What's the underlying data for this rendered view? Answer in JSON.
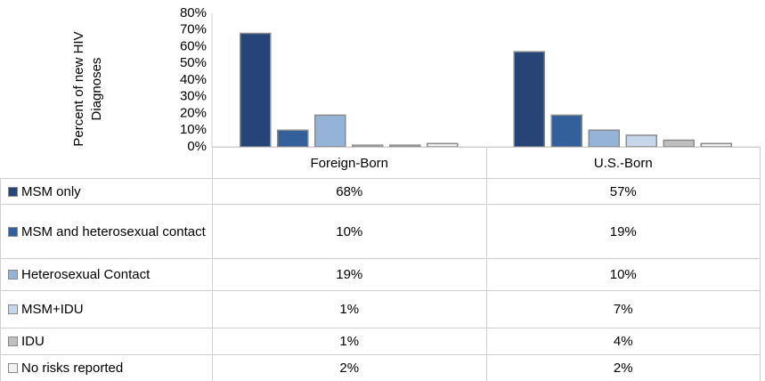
{
  "chart_data": {
    "type": "bar",
    "y_label": "Percent of new HIV Diagnoses",
    "categories": [
      "Foreign-Born",
      "U.S.-Born"
    ],
    "series": [
      {
        "name": "MSM only",
        "color": "#264478",
        "values": [
          68,
          57
        ],
        "value_labels": [
          "68%",
          "57%"
        ]
      },
      {
        "name": "MSM and heterosexual contact",
        "color": "#335f9b",
        "values": [
          10,
          19
        ],
        "value_labels": [
          "10%",
          "19%"
        ]
      },
      {
        "name": "Heterosexual Contact",
        "color": "#95b3d7",
        "values": [
          19,
          10
        ],
        "value_labels": [
          "19%",
          "10%"
        ]
      },
      {
        "name": "MSM+IDU",
        "color": "#c5d5ea",
        "values": [
          1,
          7
        ],
        "value_labels": [
          "1%",
          "7%"
        ]
      },
      {
        "name": "IDU",
        "color": "#bfbfbf",
        "values": [
          1,
          4
        ],
        "value_labels": [
          "1%",
          "4%"
        ]
      },
      {
        "name": "No risks reported",
        "color": "#f2f2f2",
        "values": [
          2,
          2
        ],
        "value_labels": [
          "2%",
          "2%"
        ]
      }
    ],
    "ylim": [
      0,
      80
    ],
    "yticks": [
      {
        "value": 0,
        "label": "0%"
      },
      {
        "value": 10,
        "label": "10%"
      },
      {
        "value": 20,
        "label": "20%"
      },
      {
        "value": 30,
        "label": "30%"
      },
      {
        "value": 40,
        "label": "40%"
      },
      {
        "value": 50,
        "label": "50%"
      },
      {
        "value": 60,
        "label": "60%"
      },
      {
        "value": 70,
        "label": "70%"
      },
      {
        "value": 80,
        "label": "80%"
      }
    ]
  }
}
